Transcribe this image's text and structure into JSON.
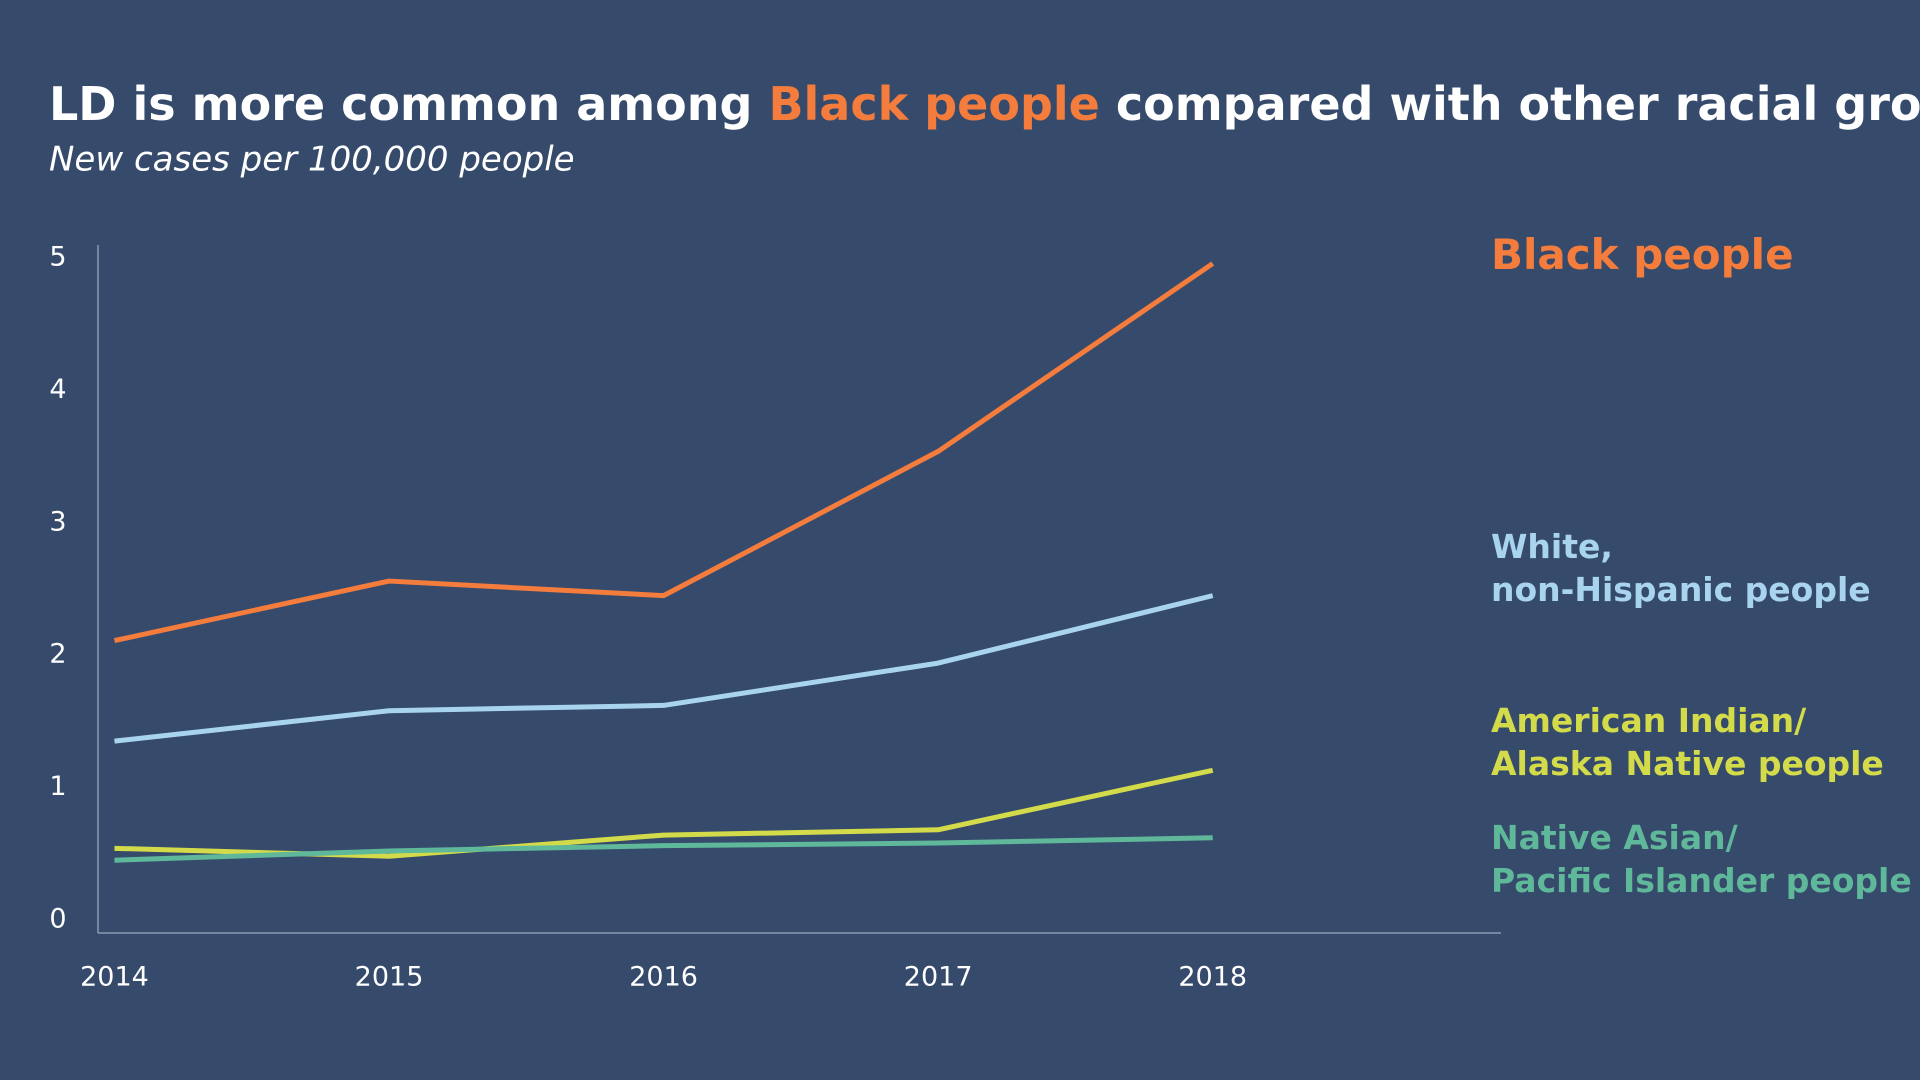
{
  "chart_data": {
    "type": "line",
    "title_parts": [
      "LD is more common among ",
      "Black people",
      " compared with other racial groups"
    ],
    "subtitle": "New cases per 100,000 people",
    "x": [
      2014,
      2015,
      2016,
      2017,
      2018
    ],
    "xlim": [
      2013.94,
      2019.05
    ],
    "xticks": [
      2014,
      2015,
      2016,
      2017,
      2018
    ],
    "ylim": [
      -0.1,
      5.1
    ],
    "yticks": [
      0,
      1,
      2,
      3,
      4,
      5
    ],
    "grid": false,
    "series": [
      {
        "name": "Black people",
        "color": "#f47c3c",
        "values": [
          2.11,
          2.56,
          2.45,
          3.54,
          4.96
        ]
      },
      {
        "name": "White,\nnon-Hispanic people",
        "color": "#a9d4f0",
        "values": [
          1.35,
          1.58,
          1.62,
          1.94,
          2.45
        ]
      },
      {
        "name": "American Indian/\nAlaska Native people",
        "color": "#d4db4a",
        "values": [
          0.54,
          0.48,
          0.64,
          0.68,
          1.13
        ]
      },
      {
        "name": "Native Asian/\nPacific Islander people",
        "color": "#5fb89a",
        "values": [
          0.45,
          0.52,
          0.56,
          0.58,
          0.62
        ]
      }
    ]
  }
}
